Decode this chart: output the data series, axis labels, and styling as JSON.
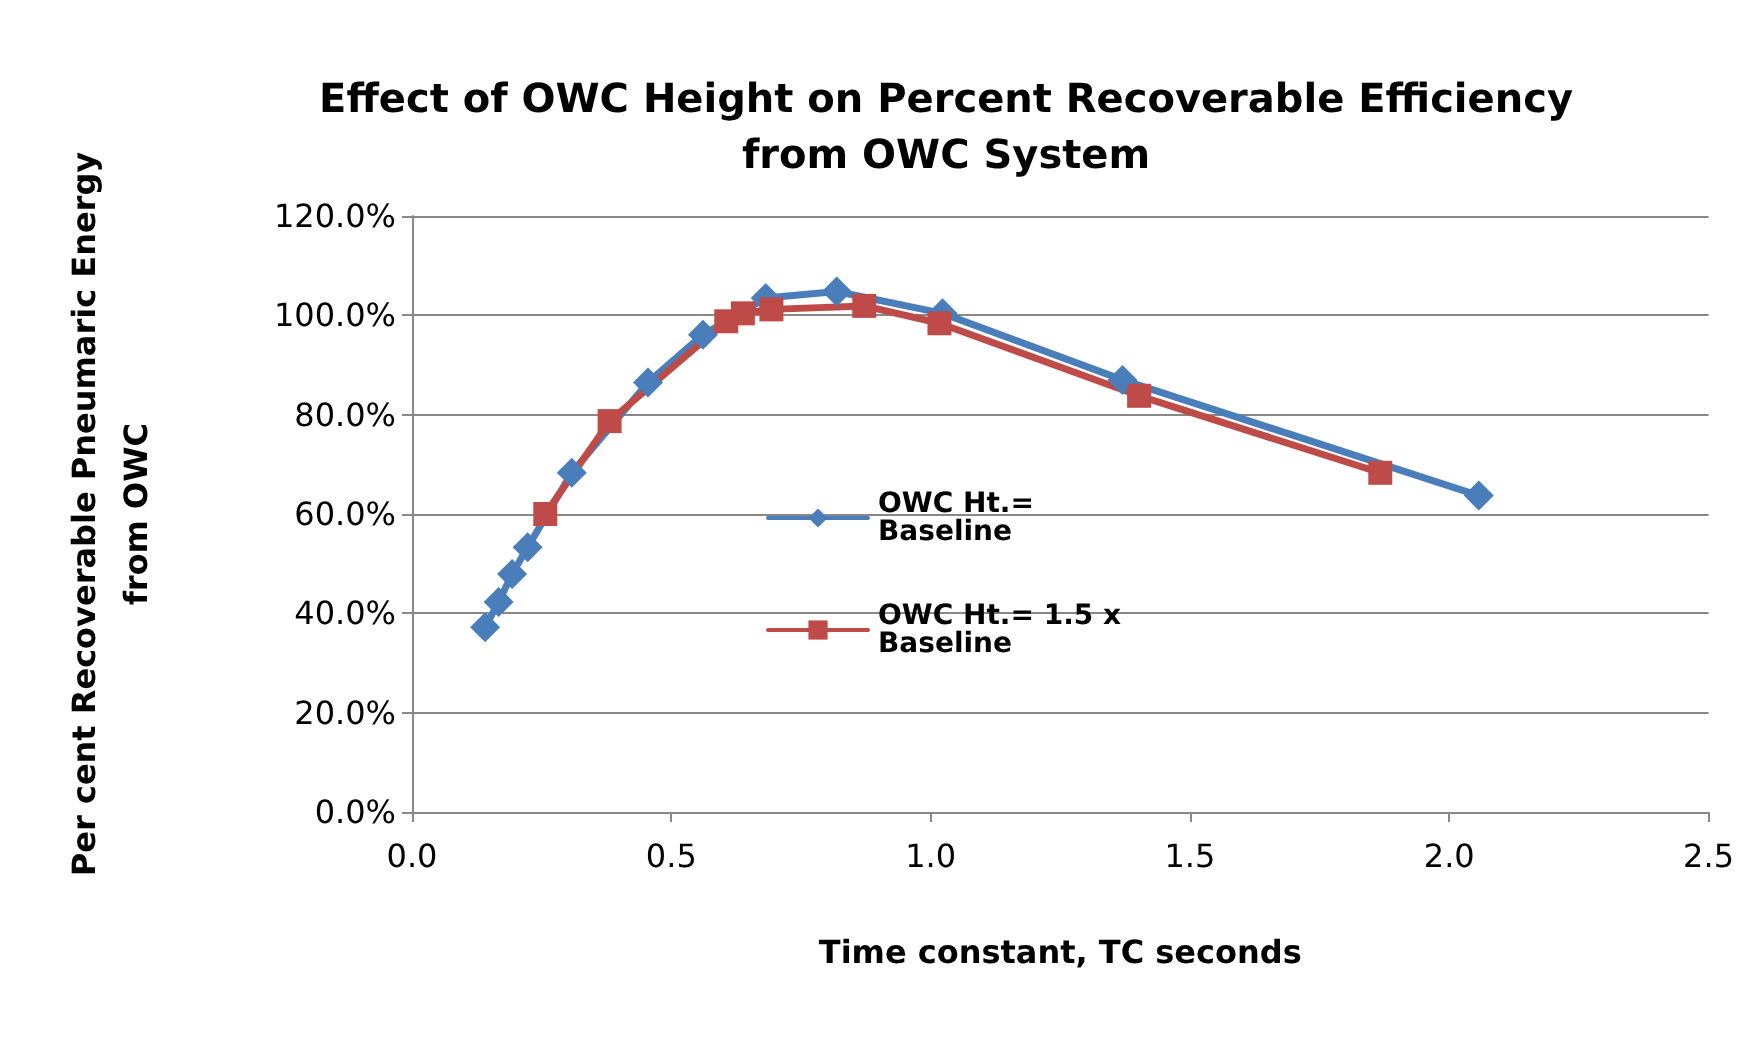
{
  "chart_data": {
    "type": "line",
    "title": "Effect of OWC Height on Percent Recoverable Efficiency\nfrom OWC System",
    "xlabel": "Time constant, TC seconds",
    "ylabel": "Per cent Recoverable Pneumaric Energy\nfrom OWC",
    "series": [
      {
        "name": "OWC Ht.= Baseline",
        "color": "#4a7ebb",
        "marker": "diamond",
        "x": [
          0.141,
          0.167,
          0.193,
          0.223,
          0.308,
          0.455,
          0.561,
          0.682,
          0.819,
          1.023,
          1.37,
          2.057
        ],
        "values": [
          37.2,
          42.3,
          47.9,
          53.3,
          68.3,
          86.5,
          96.1,
          103.5,
          104.8,
          100.4,
          87,
          63.7
        ]
      },
      {
        "name": "OWC Ht.= 1.5 x Baseline",
        "color": "#be4b48",
        "marker": "square",
        "x": [
          0.257,
          0.381,
          0.606,
          0.638,
          0.693,
          0.872,
          1.017,
          1.402,
          1.867
        ],
        "values": [
          60,
          78.7,
          98.8,
          100.4,
          101.2,
          101.9,
          98.4,
          83.8,
          68.3
        ]
      }
    ],
    "xlim": [
      0,
      2.5
    ],
    "xticks": [
      {
        "value": 0,
        "label": "0.0"
      },
      {
        "value": 0.5,
        "label": "0.5"
      },
      {
        "value": 1,
        "label": "1.0"
      },
      {
        "value": 1.5,
        "label": "1.5"
      },
      {
        "value": 2,
        "label": "2.0"
      },
      {
        "value": 2.5,
        "label": "2.5"
      }
    ],
    "ylim": [
      0,
      120
    ],
    "yticks": [
      {
        "value": 0,
        "label": "0.0%"
      },
      {
        "value": 20,
        "label": "20.0%"
      },
      {
        "value": 40,
        "label": "40.0%"
      },
      {
        "value": 60,
        "label": "60.0%"
      },
      {
        "value": 80,
        "label": "80.0%"
      },
      {
        "value": 100,
        "label": "100.0%"
      },
      {
        "value": 120,
        "label": "120.0%"
      }
    ],
    "grid": "y",
    "legend": "bottom left",
    "line_style": "solid"
  }
}
